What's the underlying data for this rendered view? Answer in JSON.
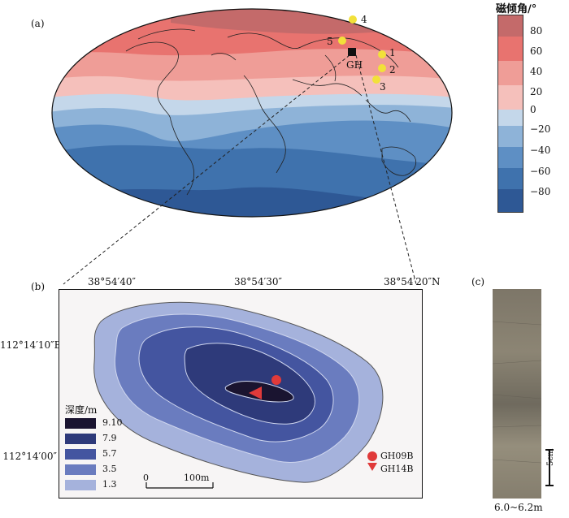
{
  "panel_a": {
    "label": "(a)",
    "site_label": "GH",
    "sites": [
      {
        "id": "1"
      },
      {
        "id": "2"
      },
      {
        "id": "3"
      },
      {
        "id": "4"
      },
      {
        "id": "5"
      }
    ]
  },
  "colorbar": {
    "title": "磁倾角/°",
    "ticks": [
      "80",
      "60",
      "40",
      "20",
      "0",
      "−20",
      "−40",
      "−60",
      "−80"
    ],
    "colors": [
      "#c46a6a",
      "#e8736f",
      "#ef9d97",
      "#f5c0bb",
      "#c4d7ea",
      "#8eb3d8",
      "#5e8fc4",
      "#3f72ad",
      "#2e5895"
    ]
  },
  "panel_b": {
    "label": "(b)",
    "top_ticks": [
      "38°54′40″",
      "38°54′30″",
      "38°54′20″N"
    ],
    "left_ticks": [
      "112°14′10″E",
      "112°14′00″"
    ],
    "depth_legend": {
      "title": "深度/m",
      "items": [
        {
          "value": "9.10",
          "color": "#1a1430"
        },
        {
          "value": "7.9",
          "color": "#2e3a7a"
        },
        {
          "value": "5.7",
          "color": "#4455a0"
        },
        {
          "value": "3.5",
          "color": "#6a7cbf"
        },
        {
          "value": "1.3",
          "color": "#a5b2dc"
        }
      ]
    },
    "scale": {
      "zero": "0",
      "end": "100m"
    },
    "samples": [
      {
        "name": "GH09B",
        "symbol": "circle",
        "color": "#e03a3a"
      },
      {
        "name": "GH14B",
        "symbol": "triangle",
        "color": "#e03a3a"
      }
    ]
  },
  "panel_c": {
    "label": "(c)",
    "scale_text": "5cm",
    "depth_range": "6.0~6.2m"
  }
}
